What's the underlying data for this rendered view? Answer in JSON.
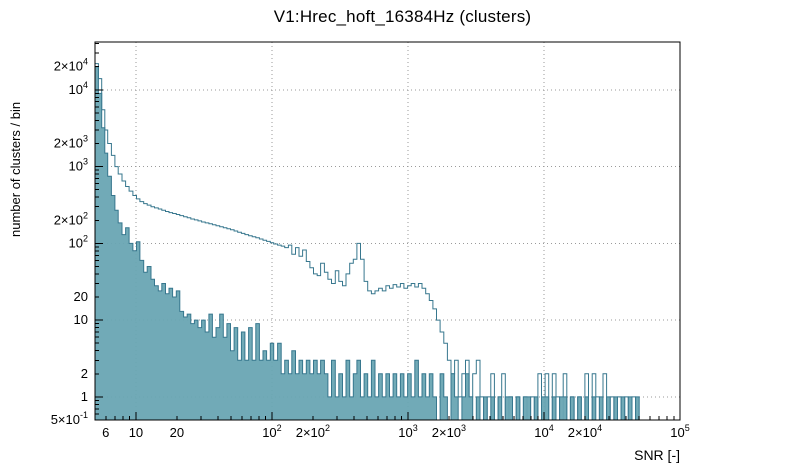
{
  "chart_data": {
    "type": "bar",
    "subtype": "step-histogram-log-log",
    "title": "V1:Hrec_hoft_16384Hz (clusters)",
    "xlabel": "SNR [-]",
    "ylabel": "number of clusters / bin",
    "xscale": "log",
    "yscale": "log",
    "xlim": [
      5,
      100000
    ],
    "ylim": [
      0.5,
      42000
    ],
    "grid": "dotted lines at decades, both axes",
    "legend": "none",
    "colors": {
      "line": "#37778e",
      "fill": "#69a5b3",
      "frame": "#000000",
      "grid": "#9a9a9a",
      "background": "#ffffff"
    },
    "xticks": [
      {
        "v": 6,
        "label": "6"
      },
      {
        "v": 10,
        "label": "10"
      },
      {
        "v": 20,
        "label": "20"
      },
      {
        "v": 100,
        "label": "10^2"
      },
      {
        "v": 200,
        "label": "2×10^2"
      },
      {
        "v": 1000,
        "label": "10^3"
      },
      {
        "v": 2000,
        "label": "2×10^3"
      },
      {
        "v": 10000,
        "label": "10^4"
      },
      {
        "v": 20000,
        "label": "2×10^4"
      },
      {
        "v": 100000,
        "label": "10^5"
      }
    ],
    "yticks": [
      {
        "v": 0.5,
        "label": "5×10^-1"
      },
      {
        "v": 1,
        "label": "1"
      },
      {
        "v": 2,
        "label": "2"
      },
      {
        "v": 10,
        "label": "10"
      },
      {
        "v": 20,
        "label": "20"
      },
      {
        "v": 100,
        "label": "10^2"
      },
      {
        "v": 200,
        "label": "2×10^2"
      },
      {
        "v": 1000,
        "label": "10^3"
      },
      {
        "v": 2000,
        "label": "2×10^3"
      },
      {
        "v": 10000,
        "label": "10^4"
      },
      {
        "v": 20000,
        "label": "2×10^4"
      }
    ],
    "series": [
      {
        "name": "outline-histogram",
        "style": "step-line",
        "points": [
          [
            5.0,
            22000
          ],
          [
            5.3,
            14000
          ],
          [
            5.6,
            5500
          ],
          [
            5.9,
            3000
          ],
          [
            6.2,
            2000
          ],
          [
            6.6,
            1400
          ],
          [
            7.0,
            1000
          ],
          [
            7.4,
            800
          ],
          [
            7.9,
            650
          ],
          [
            8.4,
            550
          ],
          [
            8.9,
            480
          ],
          [
            9.5,
            420
          ],
          [
            10.1,
            380
          ],
          [
            10.7,
            350
          ],
          [
            11.4,
            330
          ],
          [
            12.1,
            315
          ],
          [
            12.9,
            300
          ],
          [
            13.7,
            290
          ],
          [
            14.6,
            280
          ],
          [
            15.5,
            270
          ],
          [
            16.5,
            260
          ],
          [
            17.5,
            252
          ],
          [
            18.6,
            245
          ],
          [
            19.8,
            238
          ],
          [
            21,
            230
          ],
          [
            22.4,
            222
          ],
          [
            23.8,
            215
          ],
          [
            25.3,
            208
          ],
          [
            26.9,
            202
          ],
          [
            28.6,
            196
          ],
          [
            30.4,
            190
          ],
          [
            32.3,
            185
          ],
          [
            34.4,
            180
          ],
          [
            36.5,
            175
          ],
          [
            38.8,
            170
          ],
          [
            41.3,
            165
          ],
          [
            43.9,
            160
          ],
          [
            46.6,
            155
          ],
          [
            49.6,
            150
          ],
          [
            52.7,
            145
          ],
          [
            56,
            140
          ],
          [
            59.6,
            135
          ],
          [
            63.3,
            130
          ],
          [
            67.3,
            126
          ],
          [
            71.6,
            122
          ],
          [
            76.1,
            118
          ],
          [
            80.9,
            114
          ],
          [
            86,
            110
          ],
          [
            91.4,
            106
          ],
          [
            97.2,
            102
          ],
          [
            103,
            98
          ],
          [
            110,
            95
          ],
          [
            117,
            92
          ],
          [
            124,
            88
          ],
          [
            132,
            95
          ],
          [
            140,
            72
          ],
          [
            149,
            88
          ],
          [
            158,
            68
          ],
          [
            168,
            82
          ],
          [
            179,
            58
          ],
          [
            190,
            48
          ],
          [
            202,
            40
          ],
          [
            215,
            38
          ],
          [
            228,
            55
          ],
          [
            243,
            42
          ],
          [
            258,
            34
          ],
          [
            274,
            30
          ],
          [
            292,
            44
          ],
          [
            310,
            32
          ],
          [
            330,
            28
          ],
          [
            350,
            40
          ],
          [
            373,
            55
          ],
          [
            396,
            62
          ],
          [
            421,
            100
          ],
          [
            448,
            62
          ],
          [
            476,
            32
          ],
          [
            506,
            24
          ],
          [
            538,
            22
          ],
          [
            572,
            24
          ],
          [
            608,
            26
          ],
          [
            647,
            24
          ],
          [
            688,
            28
          ],
          [
            731,
            26
          ],
          [
            777,
            29
          ],
          [
            826,
            27
          ],
          [
            879,
            30
          ],
          [
            934,
            26
          ],
          [
            993,
            28
          ],
          [
            1056,
            30
          ],
          [
            1123,
            27
          ],
          [
            1194,
            30
          ],
          [
            1269,
            26
          ],
          [
            1349,
            22
          ],
          [
            1434,
            18
          ],
          [
            1525,
            14
          ],
          [
            1621,
            10
          ],
          [
            1724,
            7
          ],
          [
            1833,
            5
          ],
          [
            1949,
            3
          ],
          [
            2072,
            2
          ],
          [
            2203,
            3
          ],
          [
            2342,
            1
          ],
          [
            2490,
            2
          ],
          [
            2647,
            3
          ],
          [
            2815,
            1
          ],
          [
            2993,
            2
          ],
          [
            3182,
            3
          ],
          [
            3383,
            1
          ],
          [
            3596,
            0
          ],
          [
            3824,
            1
          ],
          [
            4066,
            2
          ],
          [
            4323,
            0
          ],
          [
            4596,
            1
          ],
          [
            4886,
            2
          ],
          [
            5195,
            0
          ],
          [
            5523,
            1
          ],
          [
            5872,
            0
          ],
          [
            6243,
            1
          ],
          [
            6637,
            0
          ],
          [
            7057,
            1
          ],
          [
            7503,
            0
          ],
          [
            7977,
            1
          ],
          [
            8481,
            0
          ],
          [
            9017,
            2
          ],
          [
            9587,
            0
          ],
          [
            10193,
            2
          ],
          [
            10837,
            0
          ],
          [
            11521,
            2
          ],
          [
            12249,
            1
          ],
          [
            13023,
            0
          ],
          [
            13845,
            2
          ],
          [
            14720,
            0
          ],
          [
            15650,
            1
          ],
          [
            16639,
            0
          ],
          [
            17690,
            1
          ],
          [
            18807,
            0
          ],
          [
            19995,
            2
          ],
          [
            21258,
            0
          ],
          [
            22601,
            2
          ],
          [
            24029,
            1
          ],
          [
            25547,
            0
          ],
          [
            27160,
            2
          ],
          [
            28876,
            0
          ],
          [
            30700,
            1
          ],
          [
            32639,
            0
          ],
          [
            34701,
            1
          ],
          [
            36893,
            0
          ],
          [
            39224,
            1
          ],
          [
            41701,
            0
          ],
          [
            44335,
            1
          ],
          [
            47136,
            0
          ],
          [
            100000,
            0
          ]
        ]
      },
      {
        "name": "filled-histogram",
        "style": "step-filled",
        "points": [
          [
            5.0,
            20000
          ],
          [
            5.3,
            9000
          ],
          [
            5.6,
            3200
          ],
          [
            5.9,
            1500
          ],
          [
            6.2,
            750
          ],
          [
            6.6,
            420
          ],
          [
            7.0,
            270
          ],
          [
            7.4,
            185
          ],
          [
            7.9,
            130
          ],
          [
            8.4,
            160
          ],
          [
            8.9,
            100
          ],
          [
            9.5,
            80
          ],
          [
            10.1,
            105
          ],
          [
            10.7,
            60
          ],
          [
            11.4,
            42
          ],
          [
            12.1,
            50
          ],
          [
            12.9,
            34
          ],
          [
            13.7,
            28
          ],
          [
            14.6,
            24
          ],
          [
            15.5,
            30
          ],
          [
            16.5,
            22
          ],
          [
            17.5,
            26
          ],
          [
            18.6,
            20
          ],
          [
            19.8,
            24
          ],
          [
            21,
            13
          ],
          [
            22.4,
            11
          ],
          [
            23.8,
            12
          ],
          [
            25.3,
            9
          ],
          [
            26.9,
            10
          ],
          [
            28.6,
            8
          ],
          [
            30.4,
            10
          ],
          [
            32.3,
            7
          ],
          [
            34.4,
            12
          ],
          [
            36.5,
            6
          ],
          [
            38.8,
            8
          ],
          [
            41.3,
            12
          ],
          [
            43.9,
            6
          ],
          [
            46.6,
            9
          ],
          [
            49.6,
            4
          ],
          [
            52.7,
            8
          ],
          [
            56,
            3
          ],
          [
            59.6,
            7
          ],
          [
            63.3,
            3
          ],
          [
            67.3,
            8
          ],
          [
            71.6,
            3
          ],
          [
            76.1,
            9
          ],
          [
            80.9,
            3
          ],
          [
            86,
            4
          ],
          [
            91.4,
            3
          ],
          [
            97.2,
            5
          ],
          [
            103,
            3
          ],
          [
            110,
            5
          ],
          [
            117,
            2
          ],
          [
            124,
            3
          ],
          [
            132,
            2
          ],
          [
            140,
            4
          ],
          [
            149,
            2
          ],
          [
            158,
            3
          ],
          [
            168,
            2
          ],
          [
            179,
            3
          ],
          [
            190,
            2
          ],
          [
            202,
            3
          ],
          [
            215,
            2
          ],
          [
            228,
            3
          ],
          [
            243,
            2
          ],
          [
            258,
            1
          ],
          [
            274,
            3
          ],
          [
            292,
            1
          ],
          [
            310,
            2
          ],
          [
            330,
            1
          ],
          [
            350,
            3
          ],
          [
            373,
            1
          ],
          [
            396,
            2
          ],
          [
            421,
            3
          ],
          [
            448,
            1
          ],
          [
            476,
            2
          ],
          [
            506,
            1
          ],
          [
            538,
            3
          ],
          [
            572,
            1
          ],
          [
            608,
            2
          ],
          [
            647,
            1
          ],
          [
            688,
            2
          ],
          [
            731,
            1
          ],
          [
            777,
            2
          ],
          [
            826,
            1
          ],
          [
            879,
            2
          ],
          [
            934,
            1
          ],
          [
            993,
            2
          ],
          [
            1056,
            1
          ],
          [
            1123,
            3
          ],
          [
            1194,
            1
          ],
          [
            1269,
            2
          ],
          [
            1349,
            1
          ],
          [
            1434,
            2
          ],
          [
            1525,
            1
          ],
          [
            1621,
            0
          ],
          [
            1724,
            2
          ],
          [
            1833,
            1
          ],
          [
            1949,
            0
          ],
          [
            2072,
            2
          ],
          [
            2203,
            1
          ],
          [
            2342,
            0
          ],
          [
            2490,
            1
          ],
          [
            2647,
            2
          ],
          [
            2815,
            1
          ],
          [
            2993,
            0
          ],
          [
            3182,
            1
          ],
          [
            3383,
            0
          ],
          [
            3596,
            1
          ],
          [
            3824,
            0
          ],
          [
            4066,
            1
          ],
          [
            4323,
            0
          ],
          [
            4596,
            1
          ],
          [
            4886,
            0
          ],
          [
            5195,
            1
          ],
          [
            5523,
            1
          ],
          [
            5872,
            0
          ],
          [
            6243,
            1
          ],
          [
            6637,
            0
          ],
          [
            7057,
            1
          ],
          [
            7503,
            1
          ],
          [
            7977,
            0
          ],
          [
            8481,
            1
          ],
          [
            9017,
            0
          ],
          [
            9587,
            1
          ],
          [
            10193,
            1
          ],
          [
            10837,
            0
          ],
          [
            11521,
            1
          ],
          [
            12249,
            0
          ],
          [
            13023,
            1
          ],
          [
            13845,
            1
          ],
          [
            14720,
            0
          ],
          [
            15650,
            1
          ],
          [
            16639,
            0
          ],
          [
            17690,
            1
          ],
          [
            18807,
            0
          ],
          [
            19995,
            1
          ],
          [
            21258,
            0
          ],
          [
            22601,
            1
          ],
          [
            24029,
            0
          ],
          [
            25547,
            1
          ],
          [
            27160,
            0
          ],
          [
            28876,
            1
          ],
          [
            30700,
            0
          ],
          [
            32639,
            1
          ],
          [
            34701,
            0
          ],
          [
            36893,
            1
          ],
          [
            39224,
            0
          ],
          [
            41701,
            1
          ],
          [
            44335,
            0
          ],
          [
            47136,
            1
          ],
          [
            50113,
            0
          ],
          [
            100000,
            0
          ]
        ]
      }
    ]
  }
}
